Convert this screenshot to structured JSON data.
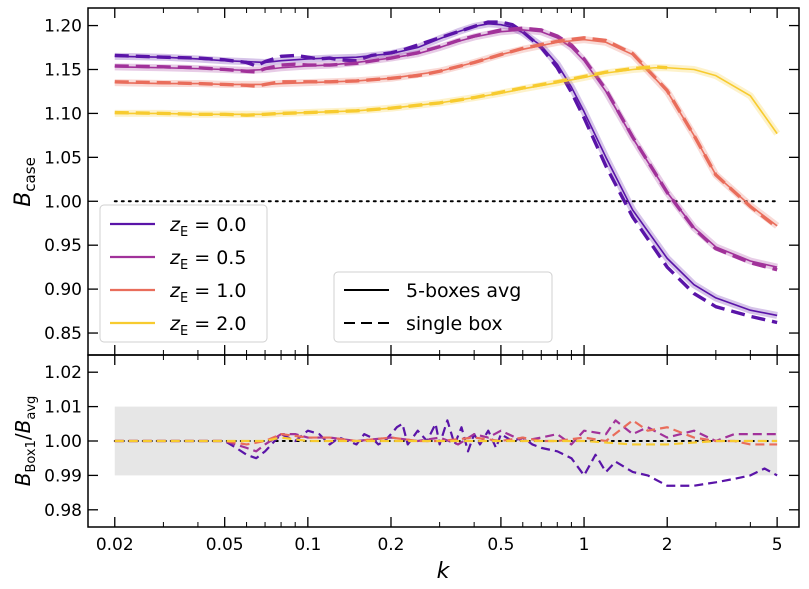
{
  "chart_data": [
    {
      "type": "line",
      "panel": "top",
      "xlabel": "",
      "ylabel": {
        "base": "B",
        "sub": "case"
      },
      "xscale": "log",
      "xlim": [
        0.016,
        6.0
      ],
      "ylim": [
        0.825,
        1.22
      ],
      "yticks": [
        0.85,
        0.9,
        0.95,
        1.0,
        1.05,
        1.1,
        1.15,
        1.2
      ],
      "ytick_labels": [
        "0.85",
        "0.90",
        "0.95",
        "1.00",
        "1.05",
        "1.10",
        "1.15",
        "1.20"
      ],
      "reference_line": {
        "y": 1.0,
        "style": "dotted",
        "x": [
          0.02,
          5.0
        ]
      },
      "legend_colors": {
        "placement": "lower-left",
        "entries": [
          {
            "base": "z",
            "sub": "E",
            "value": " = 0.0",
            "color": "#5a14a8"
          },
          {
            "base": "z",
            "sub": "E",
            "value": " = 0.5",
            "color": "#a1329a"
          },
          {
            "base": "z",
            "sub": "E",
            "value": " = 1.0",
            "color": "#e96d5b"
          },
          {
            "base": "z",
            "sub": "E",
            "value": " = 2.0",
            "color": "#f7cb2f"
          }
        ]
      },
      "legend_styles": {
        "placement": "lower-center",
        "entries": [
          {
            "label": "5-boxes avg",
            "style": "solid"
          },
          {
            "label": "single box",
            "style": "dashed"
          }
        ]
      },
      "series": [
        {
          "color": "#5a14a8",
          "avg": {
            "x": [
              0.02,
              0.03,
              0.04,
              0.05,
              0.06,
              0.07,
              0.08,
              0.1,
              0.12,
              0.15,
              0.2,
              0.25,
              0.3,
              0.35,
              0.4,
              0.45,
              0.5,
              0.55,
              0.6,
              0.7,
              0.8,
              0.9,
              1.0,
              1.2,
              1.5,
              2.0,
              2.5,
              3.0,
              4.0,
              5.0
            ],
            "y": [
              1.165,
              1.164,
              1.162,
              1.16,
              1.159,
              1.158,
              1.16,
              1.162,
              1.163,
              1.164,
              1.168,
              1.175,
              1.185,
              1.193,
              1.199,
              1.202,
              1.201,
              1.198,
              1.192,
              1.177,
              1.156,
              1.13,
              1.102,
              1.05,
              0.99,
              0.935,
              0.905,
              0.89,
              0.876,
              0.87
            ]
          },
          "single": {
            "x": [
              0.02,
              0.03,
              0.04,
              0.05,
              0.06,
              0.065,
              0.07,
              0.08,
              0.09,
              0.1,
              0.11,
              0.12,
              0.13,
              0.15,
              0.17,
              0.2,
              0.22,
              0.25,
              0.3,
              0.35,
              0.4,
              0.45,
              0.5,
              0.55,
              0.6,
              0.7,
              0.8,
              0.9,
              1.0,
              1.2,
              1.5,
              2.0,
              2.5,
              3.0,
              4.0,
              5.0
            ],
            "y": [
              1.166,
              1.164,
              1.163,
              1.161,
              1.158,
              1.154,
              1.159,
              1.165,
              1.166,
              1.164,
              1.162,
              1.163,
              1.161,
              1.16,
              1.166,
              1.169,
              1.172,
              1.178,
              1.186,
              1.193,
              1.199,
              1.204,
              1.204,
              1.201,
              1.193,
              1.175,
              1.152,
              1.124,
              1.095,
              1.04,
              0.982,
              0.925,
              0.895,
              0.88,
              0.869,
              0.862
            ]
          }
        },
        {
          "color": "#a1329a",
          "avg": {
            "x": [
              0.02,
              0.03,
              0.04,
              0.05,
              0.06,
              0.07,
              0.08,
              0.1,
              0.12,
              0.15,
              0.2,
              0.25,
              0.3,
              0.35,
              0.4,
              0.5,
              0.6,
              0.7,
              0.8,
              0.9,
              1.0,
              1.2,
              1.5,
              2.0,
              2.5,
              3.0,
              4.0,
              5.0
            ],
            "y": [
              1.153,
              1.152,
              1.151,
              1.15,
              1.149,
              1.15,
              1.152,
              1.154,
              1.155,
              1.158,
              1.163,
              1.168,
              1.175,
              1.182,
              1.187,
              1.193,
              1.195,
              1.193,
              1.186,
              1.175,
              1.16,
              1.125,
              1.072,
              1.01,
              0.97,
              0.948,
              0.932,
              0.925
            ]
          },
          "single": {
            "x": [
              0.02,
              0.03,
              0.04,
              0.05,
              0.06,
              0.065,
              0.07,
              0.08,
              0.09,
              0.1,
              0.12,
              0.15,
              0.2,
              0.25,
              0.3,
              0.35,
              0.4,
              0.5,
              0.6,
              0.7,
              0.8,
              0.9,
              1.0,
              1.2,
              1.5,
              2.0,
              2.5,
              3.0,
              4.0,
              5.0
            ],
            "y": [
              1.154,
              1.153,
              1.152,
              1.15,
              1.148,
              1.147,
              1.151,
              1.155,
              1.156,
              1.155,
              1.155,
              1.157,
              1.163,
              1.169,
              1.176,
              1.183,
              1.188,
              1.195,
              1.197,
              1.195,
              1.188,
              1.178,
              1.162,
              1.127,
              1.073,
              1.01,
              0.969,
              0.946,
              0.93,
              0.922
            ]
          }
        },
        {
          "color": "#e96d5b",
          "avg": {
            "x": [
              0.02,
              0.03,
              0.04,
              0.05,
              0.06,
              0.07,
              0.08,
              0.1,
              0.15,
              0.2,
              0.3,
              0.4,
              0.5,
              0.6,
              0.8,
              1.0,
              1.2,
              1.5,
              2.0,
              2.5,
              3.0,
              4.0,
              5.0
            ],
            "y": [
              1.135,
              1.134,
              1.134,
              1.133,
              1.133,
              1.133,
              1.134,
              1.135,
              1.137,
              1.14,
              1.148,
              1.158,
              1.167,
              1.173,
              1.181,
              1.184,
              1.181,
              1.167,
              1.125,
              1.075,
              1.03,
              0.995,
              0.972
            ]
          },
          "single": {
            "x": [
              0.02,
              0.03,
              0.04,
              0.05,
              0.06,
              0.065,
              0.07,
              0.08,
              0.1,
              0.12,
              0.15,
              0.2,
              0.25,
              0.3,
              0.4,
              0.5,
              0.6,
              0.8,
              1.0,
              1.2,
              1.5,
              2.0,
              2.5,
              3.0,
              4.0,
              5.0
            ],
            "y": [
              1.136,
              1.135,
              1.134,
              1.133,
              1.132,
              1.131,
              1.133,
              1.136,
              1.136,
              1.136,
              1.137,
              1.14,
              1.143,
              1.148,
              1.158,
              1.167,
              1.174,
              1.182,
              1.186,
              1.183,
              1.168,
              1.126,
              1.075,
              1.03,
              0.994,
              0.97
            ]
          }
        },
        {
          "color": "#f7cb2f",
          "avg": {
            "x": [
              0.02,
              0.03,
              0.04,
              0.05,
              0.06,
              0.07,
              0.08,
              0.1,
              0.15,
              0.2,
              0.3,
              0.4,
              0.5,
              0.6,
              0.8,
              1.0,
              1.2,
              1.5,
              1.8,
              2.0,
              2.5,
              3.0,
              4.0,
              5.0
            ],
            "y": [
              1.1,
              1.1,
              1.099,
              1.099,
              1.099,
              1.099,
              1.1,
              1.101,
              1.103,
              1.106,
              1.112,
              1.118,
              1.123,
              1.128,
              1.135,
              1.141,
              1.146,
              1.15,
              1.152,
              1.152,
              1.15,
              1.143,
              1.12,
              1.077
            ]
          },
          "single": {
            "x": [
              0.02,
              0.03,
              0.04,
              0.05,
              0.06,
              0.07,
              0.08,
              0.1,
              0.15,
              0.2,
              0.3,
              0.4,
              0.5,
              0.6,
              0.8,
              1.0,
              1.2,
              1.5,
              1.8,
              2.0
            ],
            "y": [
              1.101,
              1.1,
              1.099,
              1.099,
              1.098,
              1.099,
              1.1,
              1.101,
              1.103,
              1.106,
              1.112,
              1.118,
              1.124,
              1.129,
              1.136,
              1.142,
              1.147,
              1.151,
              1.153,
              1.152
            ]
          }
        }
      ]
    },
    {
      "type": "line",
      "panel": "bottom",
      "xlabel": "k",
      "ylabel": {
        "base": "B",
        "sub1": "Box1",
        "sep": "/",
        "base2": "B",
        "sub2": "avg"
      },
      "xscale": "log",
      "xlim": [
        0.016,
        6.0
      ],
      "ylim": [
        0.975,
        1.025
      ],
      "xticks": [
        0.02,
        0.05,
        0.1,
        0.2,
        0.5,
        1,
        2,
        5
      ],
      "xtick_labels": [
        "0.02",
        "0.05",
        "0.1",
        "0.2",
        "0.5",
        "1",
        "2",
        "5"
      ],
      "yticks": [
        0.98,
        0.99,
        1.0,
        1.01,
        1.02
      ],
      "ytick_labels": [
        "0.98",
        "0.99",
        "1.00",
        "1.01",
        "1.02"
      ],
      "band": {
        "y": [
          0.99,
          1.01
        ],
        "x": [
          0.02,
          5.0
        ],
        "color": "#e6e6e6"
      },
      "reference_line": {
        "y": 1.0,
        "style": "dotted",
        "x": [
          0.02,
          5.0
        ]
      },
      "series": [
        {
          "color": "#5a14a8",
          "style": "dashed",
          "x": [
            0.02,
            0.03,
            0.04,
            0.05,
            0.055,
            0.06,
            0.065,
            0.07,
            0.08,
            0.09,
            0.1,
            0.11,
            0.12,
            0.13,
            0.14,
            0.15,
            0.16,
            0.17,
            0.18,
            0.19,
            0.2,
            0.21,
            0.22,
            0.23,
            0.25,
            0.27,
            0.29,
            0.3,
            0.32,
            0.34,
            0.36,
            0.38,
            0.4,
            0.42,
            0.45,
            0.48,
            0.5,
            0.55,
            0.6,
            0.65,
            0.7,
            0.8,
            0.9,
            1.0,
            1.1,
            1.2,
            1.3,
            1.5,
            1.7,
            2.0,
            2.5,
            3.0,
            3.5,
            4.0,
            4.5,
            5.0
          ],
          "y": [
            1.0,
            1.0,
            1.0,
            1.0,
            0.998,
            0.996,
            0.995,
            0.997,
            1.002,
            1.0,
            1.003,
            1.002,
            0.999,
            1.001,
            1.0,
            0.999,
            1.002,
            1.001,
            0.999,
            1.0,
            1.002,
            1.004,
            1.005,
            0.999,
            1.003,
            1.0,
            1.005,
            0.999,
            1.006,
            0.999,
            1.004,
            0.997,
            1.002,
            0.999,
            1.003,
            0.998,
            1.002,
            1.0,
            1.001,
            0.999,
            0.998,
            0.997,
            0.995,
            0.99,
            0.996,
            0.991,
            0.994,
            0.991,
            0.99,
            0.987,
            0.987,
            0.988,
            0.989,
            0.99,
            0.992,
            0.99
          ]
        },
        {
          "color": "#a1329a",
          "style": "dashed",
          "x": [
            0.02,
            0.03,
            0.04,
            0.05,
            0.06,
            0.065,
            0.07,
            0.08,
            0.09,
            0.1,
            0.12,
            0.15,
            0.2,
            0.25,
            0.3,
            0.35,
            0.4,
            0.45,
            0.5,
            0.6,
            0.7,
            0.8,
            0.9,
            1.0,
            1.2,
            1.3,
            1.5,
            1.7,
            2.0,
            2.5,
            3.0,
            3.5,
            4.0,
            5.0
          ],
          "y": [
            1.0,
            1.0,
            1.0,
            1.0,
            0.998,
            0.997,
            0.999,
            1.002,
            1.002,
            1.001,
            1.001,
            1.0,
            1.001,
            1.0,
            1.001,
            0.999,
            1.002,
            1.001,
            1.003,
            1.0,
            1.001,
            1.002,
            0.999,
            1.003,
            1.002,
            1.006,
            1.002,
            1.004,
            1.001,
            1.003,
            1.0,
            1.002,
            1.002,
            1.002
          ]
        },
        {
          "color": "#e96d5b",
          "style": "dashed",
          "x": [
            0.02,
            0.03,
            0.04,
            0.05,
            0.06,
            0.07,
            0.08,
            0.1,
            0.12,
            0.15,
            0.2,
            0.25,
            0.3,
            0.4,
            0.5,
            0.6,
            0.7,
            0.8,
            1.0,
            1.2,
            1.5,
            1.7,
            2.0,
            2.5,
            3.0,
            3.5,
            4.0,
            5.0
          ],
          "y": [
            1.0,
            1.0,
            1.0,
            1.0,
            0.999,
            1.0,
            1.002,
            1.001,
            1.001,
            1.0,
            1.001,
            1.0,
            1.0,
            1.001,
            1.0,
            1.001,
            1.0,
            1.0,
            1.001,
            1.0,
            1.006,
            1.003,
            1.004,
            1.001,
            1.0,
            1.0,
            0.999,
            0.999
          ]
        },
        {
          "color": "#f7cb2f",
          "style": "dashed",
          "x": [
            0.02,
            0.03,
            0.04,
            0.05,
            0.06,
            0.07,
            0.08,
            0.1,
            0.15,
            0.2,
            0.3,
            0.4,
            0.5,
            0.7,
            1.0,
            1.5,
            2.0,
            3.0,
            5.0
          ],
          "y": [
            1.0,
            1.0,
            1.0,
            1.0,
            1.0,
            1.0,
            1.001,
            1.0,
            1.0,
            1.0,
            1.0,
            1.0,
            1.0,
            1.0,
            1.0,
            0.999,
            0.999,
            1.0,
            1.0
          ]
        }
      ]
    }
  ]
}
